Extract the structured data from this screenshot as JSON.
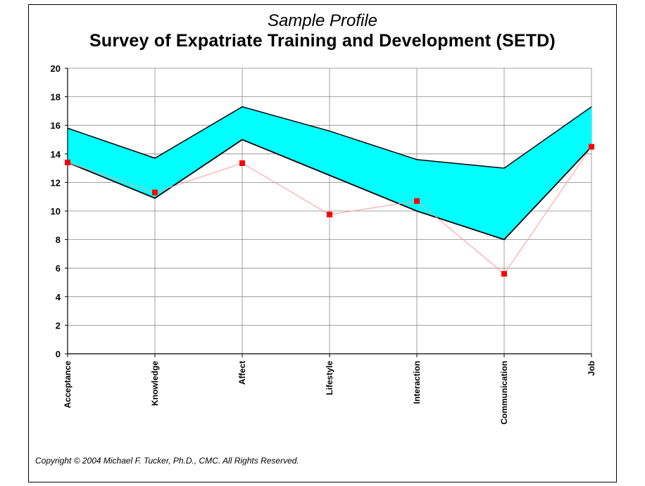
{
  "chart_data": {
    "type": "line",
    "subtitle": "Sample Profile",
    "title": "Survey of Expatriate Training and Development (SETD)",
    "categories": [
      "Acceptance",
      "Knowledge",
      "Affect",
      "Lifestyle",
      "Interaction",
      "Communication",
      "Job"
    ],
    "ylim": [
      0,
      20
    ],
    "yticks": [
      "0",
      "2",
      "4",
      "6",
      "8",
      "10",
      "12",
      "14",
      "16",
      "18",
      "20"
    ],
    "band_upper": [
      15.8,
      13.7,
      17.3,
      15.6,
      13.6,
      13.0,
      17.3
    ],
    "band_lower": [
      13.4,
      10.9,
      15.0,
      12.5,
      10.0,
      8.0,
      14.5
    ],
    "series": [
      {
        "values": [
          13.4,
          11.3,
          13.35,
          9.75,
          10.7,
          5.6,
          14.5
        ]
      }
    ],
    "grid": true,
    "colors": {
      "band": "#00ffff",
      "band_edge": "#000000",
      "series": "#ff0000",
      "series_line": "#ff9999"
    }
  },
  "footer": "Copyright © 2004 Michael F. Tucker, Ph.D., CMC.  All Rights Reserved."
}
